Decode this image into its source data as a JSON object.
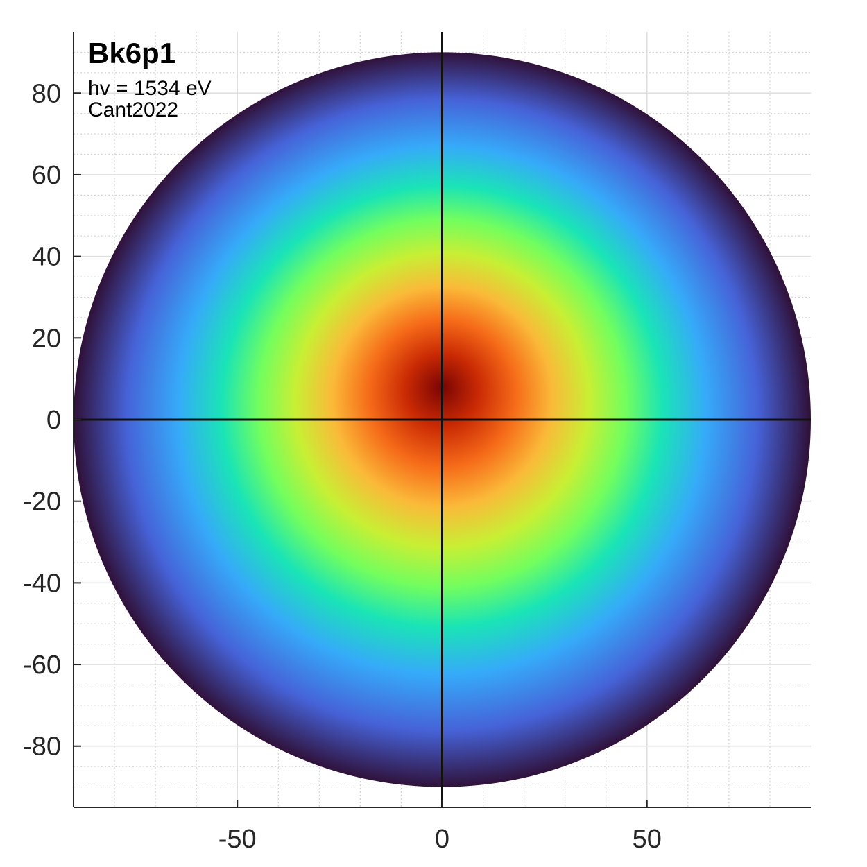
{
  "chart_data": {
    "type": "heatmap",
    "title": "Bk6p1",
    "annotations": [
      "hv = 1534 eV",
      "Cant2022"
    ],
    "xlabel": "",
    "ylabel": "",
    "xlim": [
      -90,
      90
    ],
    "ylim": [
      -95,
      95
    ],
    "x_ticks": [
      -50,
      0,
      50
    ],
    "y_ticks": [
      80,
      60,
      40,
      20,
      0,
      -20,
      -40,
      -60,
      -80
    ],
    "grid": true,
    "minor_grid": true,
    "colormap": "turbo",
    "colormap_stops": [
      "#30123b",
      "#4662d7",
      "#36aaf9",
      "#1ae4b6",
      "#72fe5e",
      "#c8ef34",
      "#faba39",
      "#f66b19",
      "#ca2a04",
      "#7a0403"
    ],
    "disk": {
      "center": [
        0,
        0
      ],
      "radius": 90
    },
    "intensity_peak": [
      0,
      8
    ],
    "intensity_profile": "gaussian",
    "crosshair": {
      "x": 0,
      "y": 0
    }
  }
}
